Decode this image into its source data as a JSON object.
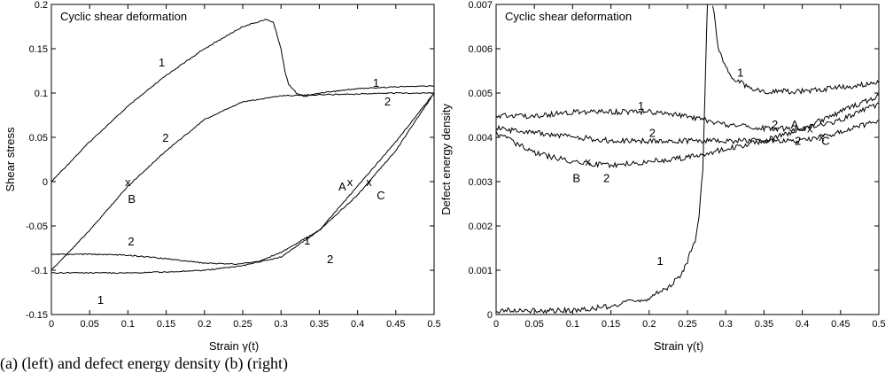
{
  "caption": "(a) (left) and defect energy density (b) (right)",
  "chart_data": [
    {
      "type": "line",
      "title": "Cyclic shear deformation",
      "xlabel": "Strain γ(t)",
      "ylabel": "Shear stress",
      "xlim": [
        0,
        0.5
      ],
      "ylim": [
        -0.15,
        0.2
      ],
      "xticks": [
        "0",
        "0.05",
        "0.1",
        "0.15",
        "0.2",
        "0.25",
        "0.3",
        "0.35",
        "0.4",
        "0.45",
        "0.5"
      ],
      "yticks": [
        "-0.15",
        "-0.1",
        "-0.05",
        "0",
        "0.05",
        "0.1",
        "0.15",
        "0.2"
      ],
      "series": [
        {
          "name": "1",
          "x": [
            0,
            0.05,
            0.1,
            0.15,
            0.2,
            0.25,
            0.28,
            0.29,
            0.3,
            0.305,
            0.31,
            0.32,
            0.33,
            0.35,
            0.4,
            0.45,
            0.5
          ],
          "y": [
            0,
            0.045,
            0.085,
            0.12,
            0.15,
            0.175,
            0.183,
            0.18,
            0.15,
            0.125,
            0.11,
            0.1,
            0.096,
            0.1,
            0.105,
            0.107,
            0.108
          ]
        },
        {
          "name": "1",
          "x": [
            0.5,
            0.45,
            0.4,
            0.35,
            0.3,
            0.25,
            0.2,
            0.15,
            0.1,
            0.05,
            0
          ],
          "y": [
            0.1,
            0.045,
            -0.005,
            -0.055,
            -0.085,
            -0.095,
            -0.1,
            -0.102,
            -0.103,
            -0.103,
            -0.103
          ]
        },
        {
          "name": "2",
          "x": [
            0,
            0.05,
            0.1,
            0.15,
            0.2,
            0.25,
            0.3,
            0.35,
            0.4,
            0.45,
            0.5
          ],
          "y": [
            -0.1,
            -0.055,
            -0.005,
            0.035,
            0.07,
            0.09,
            0.097,
            0.098,
            0.099,
            0.1,
            0.1
          ]
        },
        {
          "name": "2",
          "x": [
            0.5,
            0.45,
            0.4,
            0.35,
            0.3,
            0.27,
            0.24,
            0.2,
            0.15,
            0.1,
            0.05,
            0
          ],
          "y": [
            0.1,
            0.035,
            -0.015,
            -0.055,
            -0.08,
            -0.09,
            -0.093,
            -0.092,
            -0.087,
            -0.083,
            -0.082,
            -0.082
          ]
        }
      ],
      "annotations": [
        {
          "text": "1",
          "x": 0.14,
          "y": 0.13
        },
        {
          "text": "2",
          "x": 0.145,
          "y": 0.045
        },
        {
          "text": "1",
          "x": 0.42,
          "y": 0.107
        },
        {
          "text": "2",
          "x": 0.435,
          "y": 0.086
        },
        {
          "text": "1",
          "x": 0.33,
          "y": -0.071
        },
        {
          "text": "2",
          "x": 0.36,
          "y": -0.092
        },
        {
          "text": "1",
          "x": 0.06,
          "y": -0.138
        },
        {
          "text": "2",
          "x": 0.1,
          "y": -0.072
        },
        {
          "text": "A",
          "x": 0.375,
          "y": -0.01
        },
        {
          "text": "B",
          "x": 0.1,
          "y": -0.024
        },
        {
          "text": "C",
          "x": 0.425,
          "y": -0.02
        }
      ],
      "markers": [
        {
          "text": "x",
          "x": 0.1,
          "y": -0.005
        },
        {
          "text": "x",
          "x": 0.39,
          "y": -0.005
        },
        {
          "text": "x",
          "x": 0.415,
          "y": -0.005
        }
      ]
    },
    {
      "type": "line",
      "title": "Cyclic shear deformation",
      "xlabel": "Strain γ(t)",
      "ylabel": "Defect energy density",
      "xlim": [
        0,
        0.5
      ],
      "ylim": [
        0,
        0.0075
      ],
      "xticks": [
        "0",
        "0.05",
        "0.1",
        "0.15",
        "0.2",
        "0.25",
        "0.3",
        "0.35",
        "0.4",
        "0.45",
        "0.5"
      ],
      "yticks": [
        "0",
        "0.001",
        "0.002",
        "0.003",
        "0.004",
        "0.005",
        "0.006",
        "0.007"
      ],
      "series": [
        {
          "name": "1",
          "x": [
            0,
            0.05,
            0.1,
            0.15,
            0.2,
            0.22,
            0.24,
            0.25,
            0.26,
            0.265,
            0.27,
            0.273,
            0.276
          ],
          "y": [
            0.0001,
            0.0001,
            0.0001,
            0.0002,
            0.0004,
            0.0006,
            0.0009,
            0.0013,
            0.0018,
            0.0023,
            0.0035,
            0.0055,
            0.0075
          ]
        },
        {
          "name": "1",
          "x": [
            0.283,
            0.29,
            0.3,
            0.31,
            0.33,
            0.35,
            0.4,
            0.45,
            0.5
          ],
          "y": [
            0.0075,
            0.0065,
            0.006,
            0.0057,
            0.0055,
            0.0054,
            0.0054,
            0.0055,
            0.0056
          ]
        },
        {
          "name": "1",
          "x": [
            0.5,
            0.45,
            0.4,
            0.35,
            0.3,
            0.25,
            0.2,
            0.15,
            0.1,
            0.05,
            0
          ],
          "y": [
            0.0051,
            0.0047,
            0.0045,
            0.0045,
            0.0046,
            0.0048,
            0.0049,
            0.0049,
            0.0049,
            0.0048,
            0.0048
          ]
        },
        {
          "name": "2",
          "x": [
            0,
            0.05,
            0.1,
            0.15,
            0.2,
            0.25,
            0.3,
            0.35,
            0.4,
            0.45,
            0.5
          ],
          "y": [
            0.0044,
            0.0039,
            0.0037,
            0.0036,
            0.0037,
            0.0038,
            0.004,
            0.0042,
            0.0045,
            0.0049,
            0.0053
          ]
        },
        {
          "name": "2",
          "x": [
            0.5,
            0.45,
            0.4,
            0.35,
            0.3,
            0.25,
            0.2,
            0.15,
            0.1,
            0.05,
            0
          ],
          "y": [
            0.0047,
            0.0044,
            0.0042,
            0.0042,
            0.0042,
            0.0042,
            0.0042,
            0.0042,
            0.0043,
            0.0044,
            0.0045
          ]
        }
      ],
      "annotations": [
        {
          "text": "1",
          "x": 0.315,
          "y": 0.00575
        },
        {
          "text": "1",
          "x": 0.185,
          "y": 0.00495
        },
        {
          "text": "2",
          "x": 0.2,
          "y": 0.0043
        },
        {
          "text": "2",
          "x": 0.14,
          "y": 0.0032
        },
        {
          "text": "2",
          "x": 0.36,
          "y": 0.0045
        },
        {
          "text": "A",
          "x": 0.385,
          "y": 0.0045
        },
        {
          "text": "2",
          "x": 0.39,
          "y": 0.0041
        },
        {
          "text": "C",
          "x": 0.425,
          "y": 0.0041
        },
        {
          "text": "B",
          "x": 0.1,
          "y": 0.0032
        },
        {
          "text": "1",
          "x": 0.21,
          "y": 0.0012
        }
      ],
      "markers": [
        {
          "text": "x",
          "x": 0.12,
          "y": 0.0036
        },
        {
          "text": "x",
          "x": 0.41,
          "y": 0.0044
        },
        {
          "text": "x",
          "x": 0.425,
          "y": 0.0042
        }
      ]
    }
  ]
}
